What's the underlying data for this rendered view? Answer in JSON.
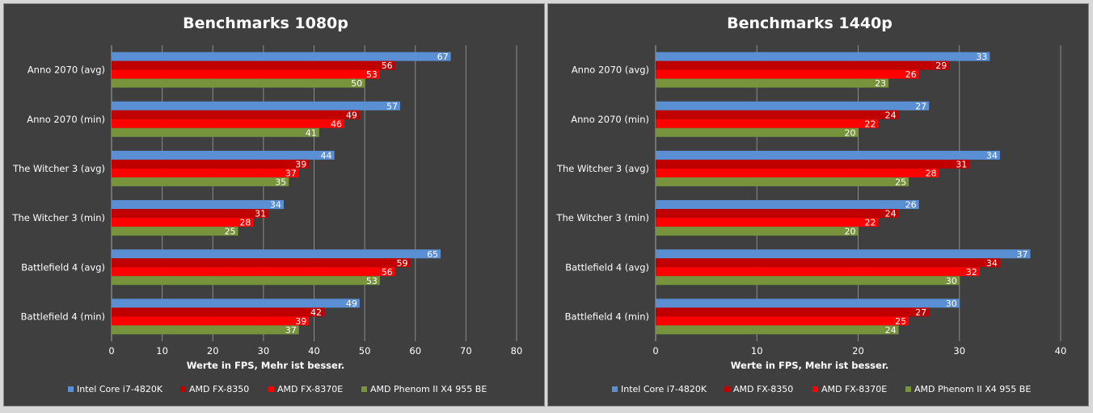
{
  "chart_data": [
    {
      "type": "bar",
      "orientation": "horizontal",
      "title": "Benchmarks 1080p",
      "xlabel": "Werte in FPS, Mehr ist besser.",
      "ylabel": "",
      "xlim": [
        0,
        80
      ],
      "ticks": [
        0,
        10,
        20,
        30,
        40,
        50,
        60,
        70,
        80
      ],
      "grid": true,
      "legend_position": "bottom",
      "categories": [
        "Anno 2070 (avg)",
        "Anno 2070 (min)",
        "The Witcher 3 (avg)",
        "The Witcher 3 (min)",
        "Battlefield 4 (avg)",
        "Battlefield 4 (min)"
      ],
      "series": [
        {
          "name": "Intel Core i7-4820K",
          "color": "#5b8fd4",
          "values": [
            67,
            57,
            44,
            34,
            65,
            49
          ]
        },
        {
          "name": "AMD FX-8350",
          "color": "#c00000",
          "values": [
            56,
            49,
            39,
            31,
            59,
            42
          ]
        },
        {
          "name": "AMD FX-8370E",
          "color": "#ff0000",
          "values": [
            53,
            46,
            37,
            28,
            56,
            39
          ]
        },
        {
          "name": "AMD Phenom II X4 955 BE",
          "color": "#77933c",
          "values": [
            50,
            41,
            35,
            25,
            53,
            37
          ]
        }
      ]
    },
    {
      "type": "bar",
      "orientation": "horizontal",
      "title": "Benchmarks 1440p",
      "xlabel": "Werte in FPS, Mehr ist besser.",
      "ylabel": "",
      "xlim": [
        0,
        40
      ],
      "ticks": [
        0,
        10,
        20,
        30,
        40
      ],
      "grid": true,
      "legend_position": "bottom",
      "categories": [
        "Anno 2070 (avg)",
        "Anno 2070 (min)",
        "The Witcher 3 (avg)",
        "The Witcher 3 (min)",
        "Battlefield 4 (avg)",
        "Battlefield 4 (min)"
      ],
      "series": [
        {
          "name": "Intel Core i7-4820K",
          "color": "#5b8fd4",
          "values": [
            33,
            27,
            34,
            26,
            37,
            30
          ]
        },
        {
          "name": "AMD FX-8350",
          "color": "#c00000",
          "values": [
            29,
            24,
            31,
            24,
            34,
            27
          ]
        },
        {
          "name": "AMD FX-8370E",
          "color": "#ff0000",
          "values": [
            26,
            22,
            28,
            22,
            32,
            25
          ]
        },
        {
          "name": "AMD Phenom II X4 955 BE",
          "color": "#77933c",
          "values": [
            23,
            20,
            25,
            20,
            30,
            24
          ]
        }
      ]
    }
  ]
}
